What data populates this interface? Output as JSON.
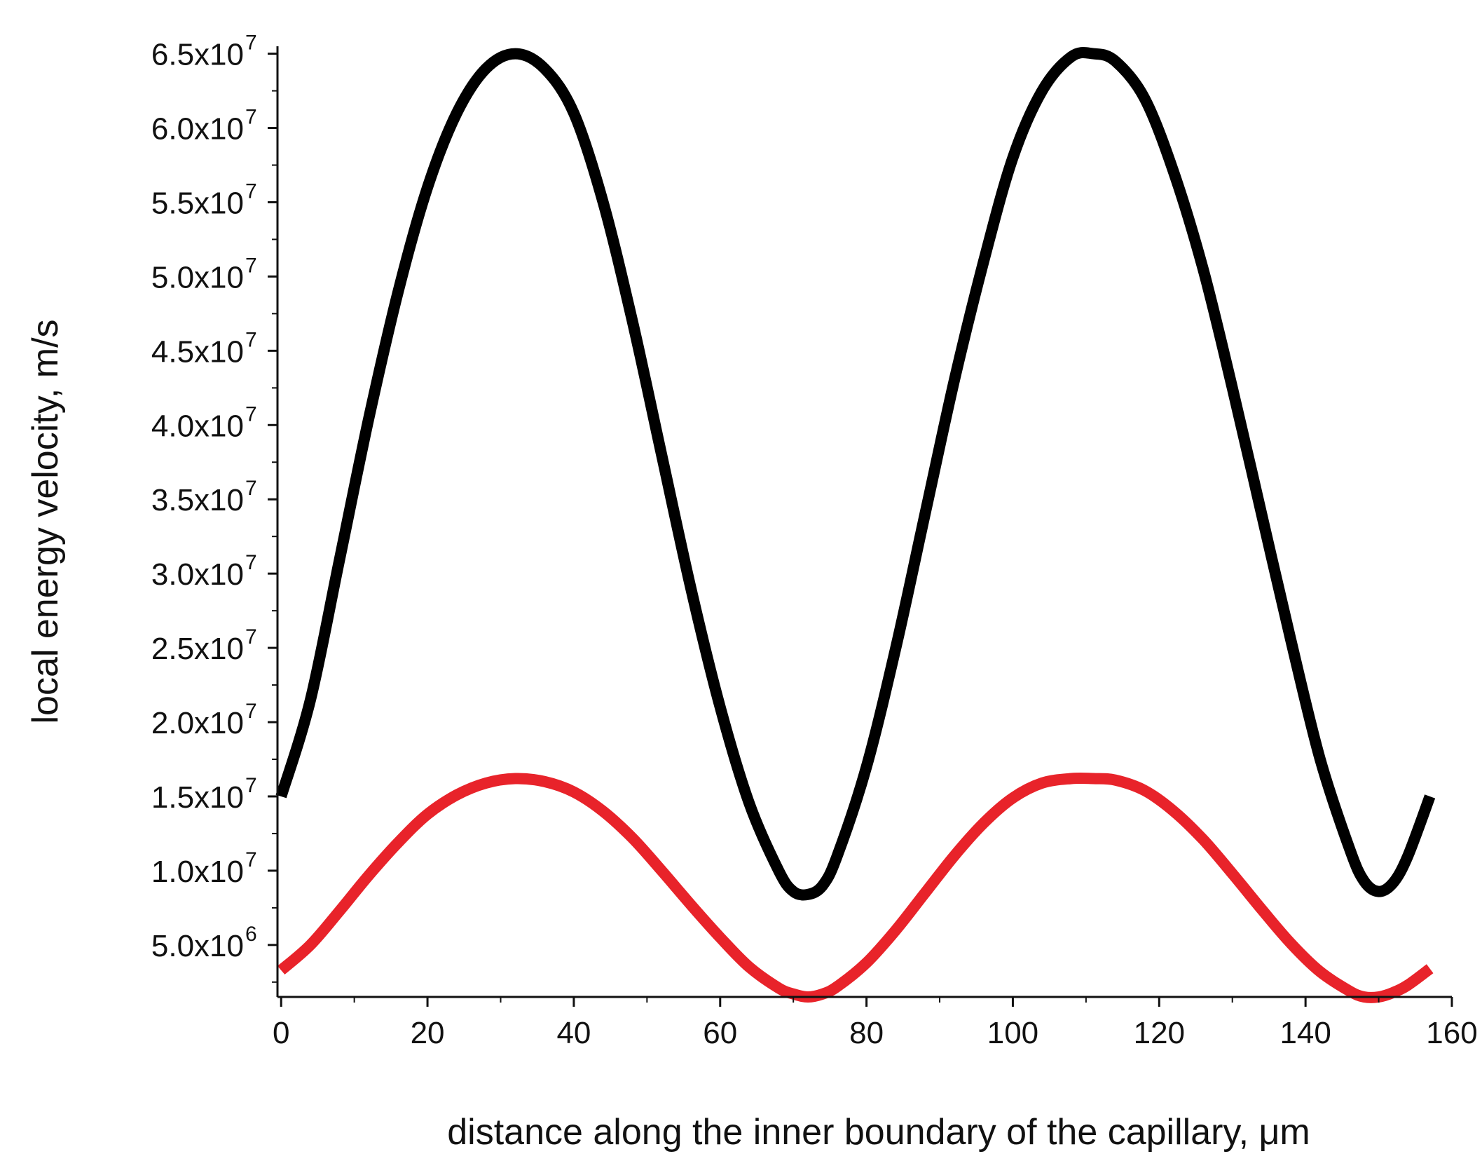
{
  "chart_data": {
    "type": "line",
    "title": "",
    "xlabel": "distance along the inner boundary of the capillary, μm",
    "ylabel": "local energy velocity, m/s",
    "xlim": [
      -0.5,
      160
    ],
    "ylim": [
      1500000,
      65500000
    ],
    "x_ticks": [
      0,
      20,
      40,
      60,
      80,
      100,
      120,
      140,
      160
    ],
    "x_tick_labels": [
      "0",
      "20",
      "40",
      "60",
      "80",
      "100",
      "120",
      "140",
      "160"
    ],
    "y_ticks": [
      {
        "value": 5000000,
        "mantissa": "5.0x10",
        "exponent": "6"
      },
      {
        "value": 10000000,
        "mantissa": "1.0x10",
        "exponent": "7"
      },
      {
        "value": 15000000,
        "mantissa": "1.5x10",
        "exponent": "7"
      },
      {
        "value": 20000000,
        "mantissa": "2.0x10",
        "exponent": "7"
      },
      {
        "value": 25000000,
        "mantissa": "2.5x10",
        "exponent": "7"
      },
      {
        "value": 30000000,
        "mantissa": "3.0x10",
        "exponent": "7"
      },
      {
        "value": 35000000,
        "mantissa": "3.5x10",
        "exponent": "7"
      },
      {
        "value": 40000000,
        "mantissa": "4.0x10",
        "exponent": "7"
      },
      {
        "value": 45000000,
        "mantissa": "4.5x10",
        "exponent": "7"
      },
      {
        "value": 50000000,
        "mantissa": "5.0x10",
        "exponent": "7"
      },
      {
        "value": 55000000,
        "mantissa": "5.5x10",
        "exponent": "7"
      },
      {
        "value": 60000000,
        "mantissa": "6.0x10",
        "exponent": "7"
      },
      {
        "value": 65000000,
        "mantissa": "6.5x10",
        "exponent": "7"
      }
    ],
    "grid": false,
    "legend": "none",
    "series": [
      {
        "color": "#000000",
        "x": [
          0,
          4,
          8,
          12,
          16,
          20,
          24,
          28,
          32,
          36,
          40,
          44,
          48,
          52,
          56,
          60,
          64,
          68,
          70,
          72,
          74,
          76,
          80,
          84,
          88,
          92,
          96,
          100,
          104,
          108,
          111,
          114,
          118,
          122,
          126,
          130,
          134,
          138,
          142,
          146,
          148,
          150,
          152,
          154,
          157
        ],
        "y": [
          15000000,
          21500000,
          31000000,
          40500000,
          49000000,
          56000000,
          61000000,
          64000000,
          65000000,
          64000000,
          61000000,
          55000000,
          47000000,
          38000000,
          29000000,
          21000000,
          14500000,
          10000000,
          8600000,
          8400000,
          9000000,
          11000000,
          17000000,
          25000000,
          34000000,
          43000000,
          51000000,
          58000000,
          62500000,
          64800000,
          65000000,
          64500000,
          62000000,
          57000000,
          50500000,
          42500000,
          34000000,
          25500000,
          17500000,
          11500000,
          9300000,
          8600000,
          9200000,
          11000000,
          15000000
        ]
      },
      {
        "color": "#e8232a",
        "x": [
          0,
          4,
          8,
          12,
          16,
          20,
          24,
          28,
          32,
          36,
          40,
          44,
          48,
          52,
          56,
          60,
          64,
          68,
          70,
          72,
          74,
          76,
          80,
          84,
          88,
          92,
          96,
          100,
          104,
          108,
          111,
          114,
          118,
          122,
          126,
          130,
          134,
          138,
          142,
          146,
          148,
          150,
          152,
          154,
          157
        ],
        "y": [
          3300000,
          5000000,
          7300000,
          9700000,
          11900000,
          13800000,
          15100000,
          15900000,
          16200000,
          16000000,
          15300000,
          14000000,
          12200000,
          10000000,
          7700000,
          5500000,
          3500000,
          2100000,
          1700000,
          1500000,
          1700000,
          2200000,
          3800000,
          6000000,
          8500000,
          11000000,
          13200000,
          14900000,
          15900000,
          16200000,
          16200000,
          16100000,
          15400000,
          14000000,
          12100000,
          9800000,
          7400000,
          5100000,
          3200000,
          1900000,
          1500000,
          1500000,
          1800000,
          2300000,
          3400000
        ]
      }
    ]
  }
}
